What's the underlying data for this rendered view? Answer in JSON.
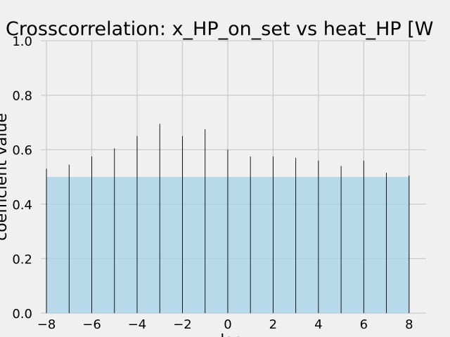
{
  "chart_data": {
    "type": "bar",
    "title": "Crosscorrelation: x_HP_on_set vs heat_HP [W",
    "xlabel": "lag",
    "ylabel": "coefficient value",
    "xlim": [
      -8.25,
      8.75
    ],
    "ylim": [
      0.0,
      1.0
    ],
    "xticks": [
      "−8",
      "−6",
      "−4",
      "−2",
      "0",
      "2",
      "4",
      "6",
      "8"
    ],
    "yticks": [
      "0.0",
      "0.2",
      "0.4",
      "0.6",
      "0.8",
      "1.0"
    ],
    "grid": true,
    "threshold": 0.5,
    "x": [
      -8,
      -7,
      -6,
      -5,
      -4,
      -3,
      -2,
      -1,
      0,
      1,
      2,
      3,
      4,
      5,
      6,
      7,
      8
    ],
    "values": [
      0.53,
      0.545,
      0.575,
      0.605,
      0.65,
      0.695,
      0.65,
      0.675,
      0.6,
      0.575,
      0.575,
      0.57,
      0.56,
      0.54,
      0.56,
      0.515,
      0.505
    ]
  },
  "colors": {
    "background": "#f0f0f0",
    "grid": "#cbcbcb",
    "bar_line": "#000000",
    "threshold_fill": "#a6d1e8"
  }
}
